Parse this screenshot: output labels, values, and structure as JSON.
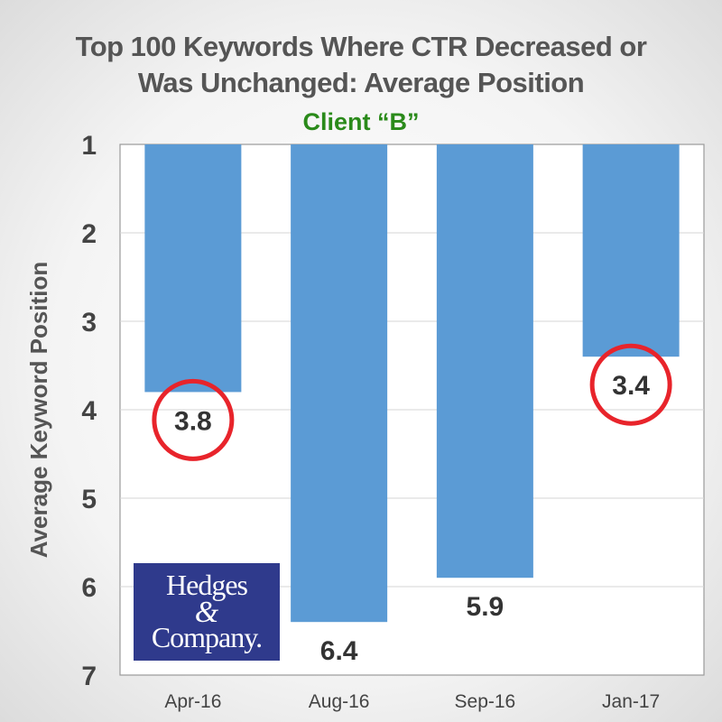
{
  "chart_data": {
    "type": "bar",
    "title_line1": "Top 100 Keywords Where CTR Decreased or",
    "title_line2": "Was Unchanged: Average Position",
    "subtitle": "Client “B”",
    "ylabel": "Average Keyword Position",
    "xlabel": "",
    "categories": [
      "Apr-16",
      "Aug-16",
      "Sep-16",
      "Jan-17"
    ],
    "values": [
      3.8,
      6.4,
      5.9,
      3.4
    ],
    "value_labels": [
      "3.8",
      "6.4",
      "5.9",
      "3.4"
    ],
    "ylim": [
      1,
      7
    ],
    "y_inverted": true,
    "yticks": [
      "1",
      "2",
      "3",
      "4",
      "5",
      "6",
      "7"
    ],
    "grid": true,
    "highlighted_values": [
      "3.8",
      "3.4"
    ],
    "colors": {
      "bar": "#5b9bd5",
      "highlight_circle": "#e8242b",
      "title": "#555555",
      "subtitle": "#2a8a1a"
    }
  },
  "logo": {
    "line1": "Hedges",
    "line2": "&",
    "line3": "Company."
  }
}
